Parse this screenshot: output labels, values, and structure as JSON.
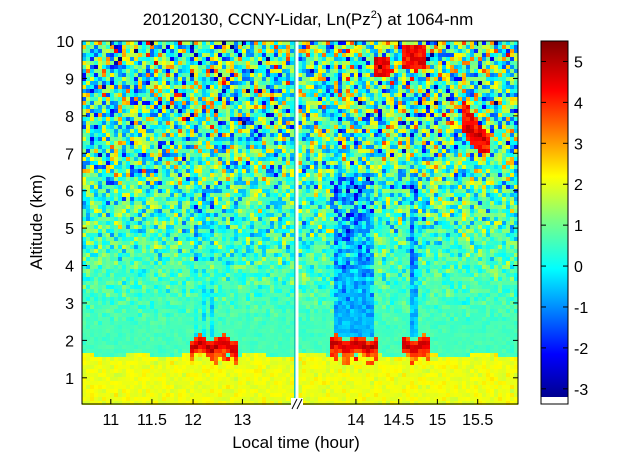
{
  "chart_data": {
    "type": "heatmap",
    "title_prefix": "20120130, CCNY-Lidar, Ln(Pz",
    "title_superscript": "2",
    "title_suffix": ") at 1064-nm",
    "xlabel": "Local time (hour)",
    "ylabel": "Altitude (km)",
    "xlim": [
      10.65,
      15.95
    ],
    "ylim": [
      0.3,
      10
    ],
    "axis_break_time": 12.6,
    "x_ticks": [
      {
        "value": 11,
        "label": "11"
      },
      {
        "value": 11.5,
        "label": "11.5"
      },
      {
        "value": 12,
        "label": "12"
      },
      {
        "value": 12.6,
        "label": "13"
      },
      {
        "value": 13.6,
        "label": "14",
        "display": 13.98
      },
      {
        "value": 14.5,
        "label": "14.5",
        "display": 14.5
      },
      {
        "value": 15,
        "label": "15",
        "display": 14.97
      },
      {
        "value": 15.5,
        "label": "15.5",
        "display": 15.46
      }
    ],
    "y_ticks": [
      {
        "value": 1,
        "label": "1"
      },
      {
        "value": 2,
        "label": "2"
      },
      {
        "value": 3,
        "label": "3"
      },
      {
        "value": 4,
        "label": "4"
      },
      {
        "value": 5,
        "label": "5"
      },
      {
        "value": 6,
        "label": "6"
      },
      {
        "value": 7,
        "label": "7"
      },
      {
        "value": 8,
        "label": "8"
      },
      {
        "value": 9,
        "label": "9"
      },
      {
        "value": 10,
        "label": "10"
      }
    ],
    "colorbar": {
      "min": -3.2,
      "max": 5.5,
      "ticks": [
        "5",
        "4",
        "3",
        "2",
        "1",
        "0",
        "-1",
        "-2",
        "-3"
      ],
      "tick_values": [
        5,
        4,
        3,
        2,
        1,
        0,
        -1,
        -2,
        -3
      ],
      "colormap": "jet"
    },
    "features": [
      {
        "name": "boundary-layer",
        "altitude_top_km": 1.6,
        "value": 2.1
      },
      {
        "name": "pbl-top-aerosol",
        "time_ranges": [
          [
            11.98,
            12.55
          ],
          [
            13.65,
            14.25
          ],
          [
            14.55,
            14.9
          ]
        ],
        "altitude_km": 1.85,
        "value": 5.0
      },
      {
        "name": "high-cloud",
        "time_range": [
          14.2,
          15.6
        ],
        "altitude_km": [
          7.0,
          9.8
        ],
        "value": 4.5
      }
    ]
  }
}
